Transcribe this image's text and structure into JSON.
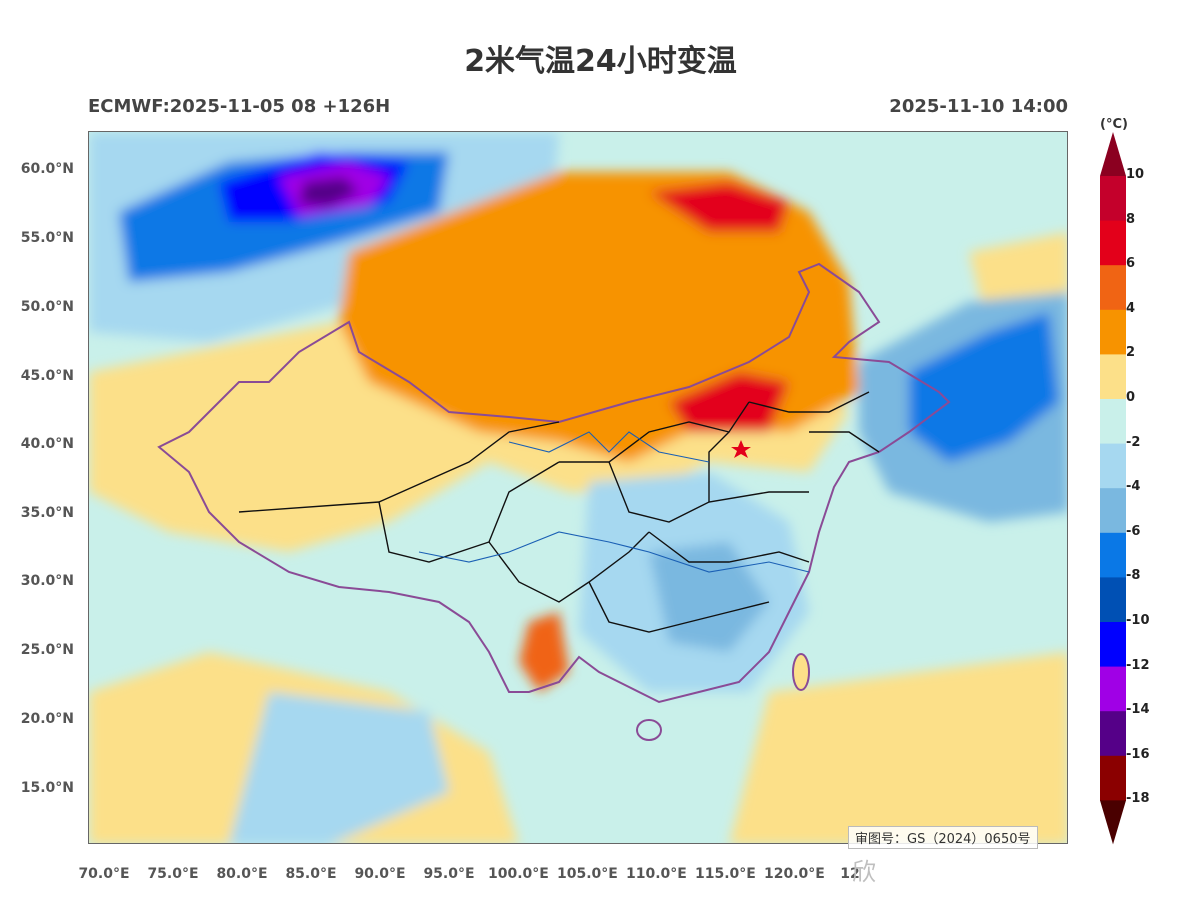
{
  "title": "2米气温24小时变温",
  "model_run": "ECMWF:2025-11-05 08 +126H",
  "valid_time": "2025-11-10 14:00",
  "lat_labels": [
    "60.0°N",
    "55.0°N",
    "50.0°N",
    "45.0°N",
    "40.0°N",
    "35.0°N",
    "30.0°N",
    "25.0°N",
    "20.0°N",
    "15.0°N"
  ],
  "lon_labels": [
    "70.0°E",
    "75.0°E",
    "80.0°E",
    "85.0°E",
    "90.0°E",
    "95.0°E",
    "100.0°E",
    "105.0°E",
    "110.0°E",
    "115.0°E",
    "120.0°E",
    "12"
  ],
  "colorbar": {
    "unit": "(°C)",
    "labels": [
      "10",
      "8",
      "6",
      "4",
      "2",
      "0",
      "-2",
      "-4",
      "-6",
      "-8",
      "-10",
      "-12",
      "-14",
      "-16",
      "-18"
    ],
    "colors": [
      "#c4002b",
      "#e3001a",
      "#f06414",
      "#f79300",
      "#fce089",
      "#c9f0ea",
      "#a6d8f0",
      "#7ab8e0",
      "#0a78e6",
      "#0050b4",
      "#0000ff",
      "#a000e6",
      "#550088",
      "#8b0000"
    ],
    "top_color": "#8b0020",
    "bottom_color": "#4a0000"
  },
  "map_extent": {
    "lon_min": 69,
    "lon_max": 140,
    "lat_min": 11,
    "lat_max": 62.7
  },
  "cities_marker": {
    "name": "Beijing",
    "color": "#e3001a"
  },
  "approval_note": "审图号：GS（2024）0650号",
  "watermark": "欣"
}
